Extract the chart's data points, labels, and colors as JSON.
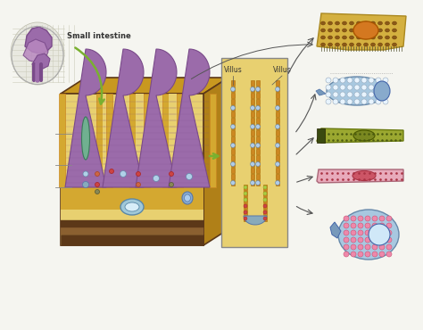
{
  "bg_color": "#f5f5f0",
  "small_intestine_label": "Small intestine",
  "villus_label1": "Villus",
  "villus_label2": "Villus",
  "colors": {
    "purple_villi": "#9B6BAA",
    "purple_dark": "#7A4A8A",
    "purple_light": "#B888C0",
    "yellow_wall": "#D4A830",
    "yellow_light": "#E8C84A",
    "yellow_bg": "#E8D070",
    "dark_brown": "#5C3818",
    "green_lymph": "#5A9A7A",
    "blue_cell": "#88AACC",
    "blue_light": "#AACCE0",
    "orange_border": "#CC8822",
    "arrow_green": "#7AB030",
    "gray": "#888888",
    "white": "#FFFFFF",
    "orange_cell": "#E8943A",
    "olive_cell": "#8B9B2A",
    "pink_cell": "#E8A8A8",
    "red_cell": "#CC5555",
    "stem_blue": "#88AACE",
    "pink_dot": "#EE88AA"
  }
}
